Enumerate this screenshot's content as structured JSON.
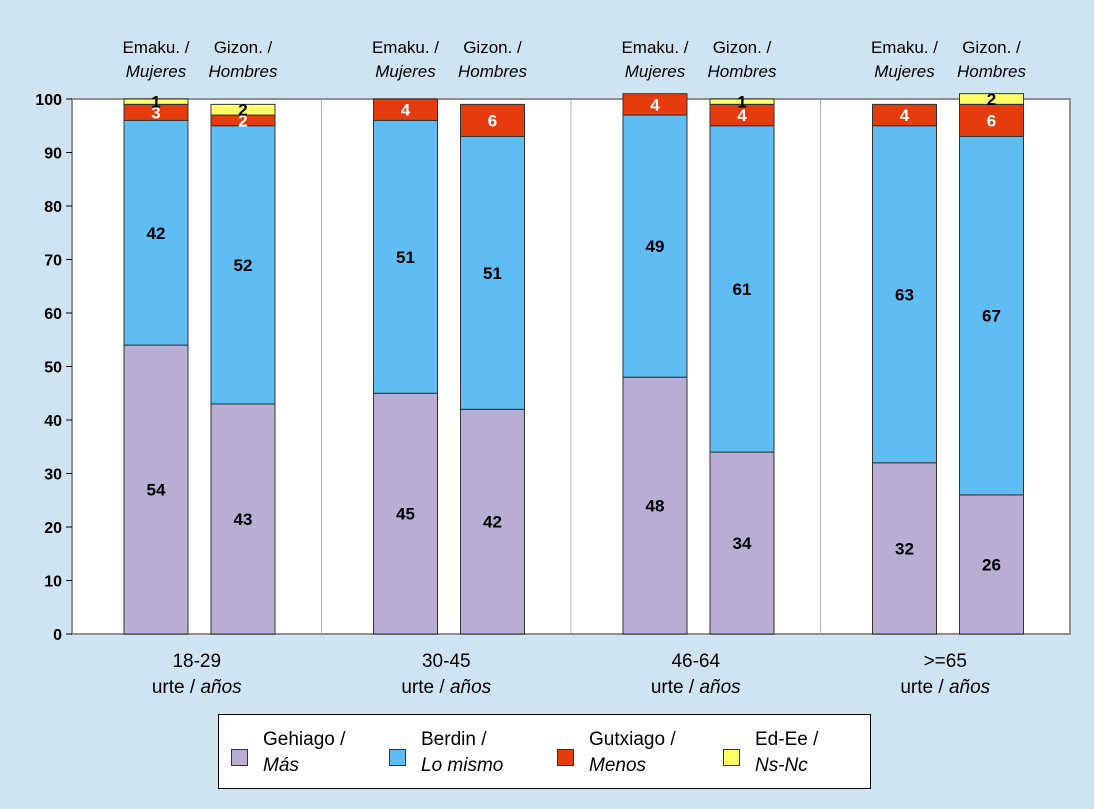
{
  "chart_data": {
    "type": "bar",
    "stacked": true,
    "ylim": [
      0,
      100
    ],
    "yticks": [
      "0",
      "10",
      "20",
      "30",
      "40",
      "50",
      "60",
      "70",
      "80",
      "90",
      "100"
    ],
    "groups": [
      {
        "label": "18-29",
        "unit_plain": "urte / ",
        "unit_italic": "años"
      },
      {
        "label": "30-45",
        "unit_plain": "urte / ",
        "unit_italic": "años"
      },
      {
        "label": "46-64",
        "unit_plain": "urte / ",
        "unit_italic": "años"
      },
      {
        "label": ">=65",
        "unit_plain": "urte / ",
        "unit_italic": "años"
      }
    ],
    "bar_headers": [
      {
        "plain": "Emaku. /",
        "italic": "Mujeres"
      },
      {
        "plain": "Gizon. /",
        "italic": "Hombres"
      }
    ],
    "bars": [
      {
        "group": 0,
        "sex": 0,
        "values": [
          54,
          42,
          3,
          1
        ]
      },
      {
        "group": 0,
        "sex": 1,
        "values": [
          43,
          52,
          2,
          2
        ]
      },
      {
        "group": 1,
        "sex": 0,
        "values": [
          45,
          51,
          4,
          0
        ]
      },
      {
        "group": 1,
        "sex": 1,
        "values": [
          42,
          51,
          6,
          0
        ]
      },
      {
        "group": 2,
        "sex": 0,
        "values": [
          48,
          49,
          4,
          0
        ]
      },
      {
        "group": 2,
        "sex": 1,
        "values": [
          34,
          61,
          4,
          1
        ]
      },
      {
        "group": 3,
        "sex": 0,
        "values": [
          32,
          63,
          4,
          0
        ]
      },
      {
        "group": 3,
        "sex": 1,
        "values": [
          26,
          67,
          6,
          2
        ]
      }
    ],
    "series": [
      {
        "name": "Gehiago / Más",
        "name_plain": "Gehiago /",
        "name_italic": "Más",
        "color": "#b8aed3"
      },
      {
        "name": "Berdin / Lo mismo",
        "name_plain": "Berdin /",
        "name_italic": "Lo mismo",
        "color": "#5fbdf3"
      },
      {
        "name": "Gutxiago / Menos",
        "name_plain": "Gutxiago /",
        "name_italic": "Menos",
        "color": "#e63b0c"
      },
      {
        "name": "Ed-Ee / Ns-Nc",
        "name_plain": "Ed-Ee /",
        "name_italic": "Ns-Nc",
        "color": "#ffff66"
      }
    ],
    "grid": false,
    "legend_position": "bottom"
  }
}
